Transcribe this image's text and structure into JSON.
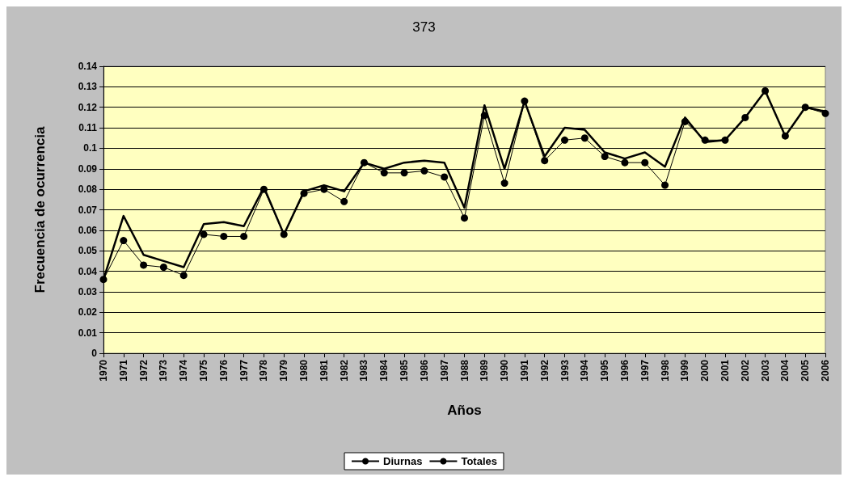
{
  "chart_data": {
    "type": "line",
    "title": "373",
    "xlabel": "Años",
    "ylabel": "Frecuencia de ocurrencia",
    "categories": [
      "1970",
      "1971",
      "1972",
      "1973",
      "1974",
      "1975",
      "1976",
      "1977",
      "1978",
      "1979",
      "1980",
      "1981",
      "1982",
      "1983",
      "1984",
      "1985",
      "1986",
      "1987",
      "1988",
      "1989",
      "1990",
      "1991",
      "1992",
      "1993",
      "1994",
      "1995",
      "1996",
      "1997",
      "1998",
      "1999",
      "2000",
      "2001",
      "2002",
      "2003",
      "2004",
      "2005",
      "2006"
    ],
    "series": [
      {
        "name": "Diurnas",
        "color": "#000000",
        "marker": "circle",
        "values": [
          0.036,
          0.055,
          0.043,
          0.042,
          0.038,
          0.058,
          0.057,
          0.057,
          0.08,
          0.058,
          0.078,
          0.08,
          0.074,
          0.093,
          0.088,
          0.088,
          0.089,
          0.086,
          0.066,
          0.116,
          0.083,
          0.123,
          0.094,
          0.104,
          0.105,
          0.096,
          0.093,
          0.093,
          0.082,
          0.113,
          0.104,
          0.104,
          0.115,
          0.128,
          0.106,
          0.12,
          0.117
        ]
      },
      {
        "name": "Totales",
        "color": "#000000",
        "marker": "none",
        "values": [
          0.036,
          0.067,
          0.048,
          0.045,
          0.042,
          0.063,
          0.064,
          0.062,
          0.081,
          0.058,
          0.079,
          0.082,
          0.079,
          0.093,
          0.09,
          0.093,
          0.094,
          0.093,
          0.071,
          0.121,
          0.09,
          0.123,
          0.096,
          0.11,
          0.109,
          0.098,
          0.095,
          0.098,
          0.091,
          0.115,
          0.103,
          0.104,
          0.115,
          0.128,
          0.106,
          0.12,
          0.118
        ]
      }
    ],
    "ylim": [
      0,
      0.14
    ],
    "yticks": [
      0,
      0.01,
      0.02,
      0.03,
      0.04,
      0.05,
      0.06,
      0.07,
      0.08,
      0.09,
      0.1,
      0.11,
      0.12,
      0.13,
      0.14
    ],
    "grid": "y",
    "legend": "bottom",
    "line_style": "solid"
  }
}
